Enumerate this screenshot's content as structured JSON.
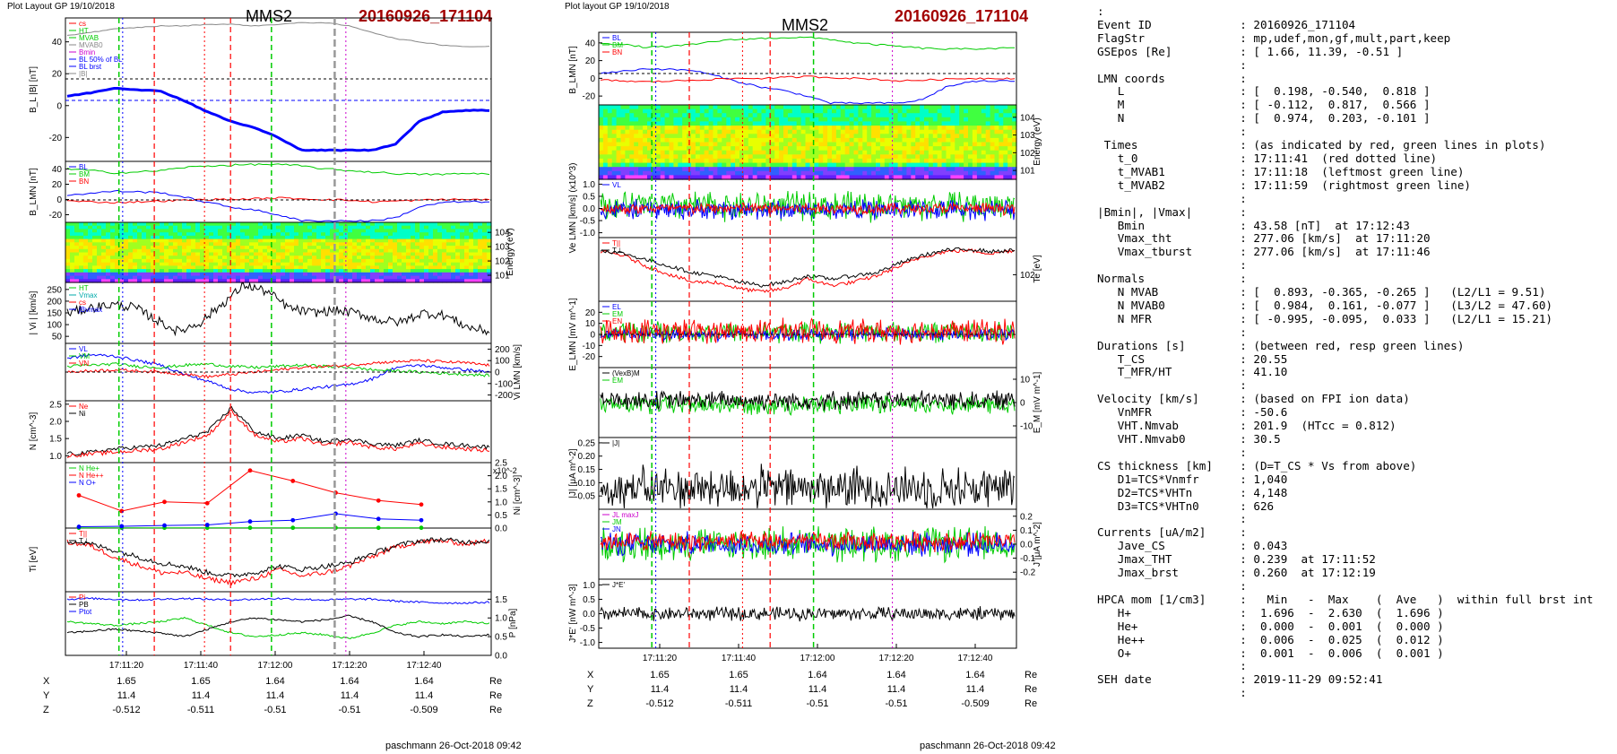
{
  "header": {
    "left_layout_label": "Plot Layout GP 19/10/2018",
    "right_layout_label": "Plot layout GP 19/10/2018",
    "spacecraft": "MMS2",
    "event_id": "20160926_171104",
    "footer": "paschmann 26-Oct-2018 09:42"
  },
  "positions": {
    "row_labels": [
      "X",
      "Y",
      "Z"
    ],
    "unit": "Re",
    "X": [
      "1.65",
      "1.65",
      "1.64",
      "1.64",
      "1.64"
    ],
    "Y": [
      "11.4",
      "11.4",
      "11.4",
      "11.4",
      "11.4"
    ],
    "Z": [
      "-0.512",
      "-0.511",
      "-0.51",
      "-0.51",
      "-0.509"
    ]
  },
  "time_ticks": [
    "17:11:20",
    "17:11:40",
    "17:12:00",
    "17:12:20",
    "17:12:40"
  ],
  "colors": {
    "red": "#ff0000",
    "green": "#00cc00",
    "blue": "#0000ff",
    "black": "#000000",
    "magenta": "#cc00cc",
    "dark_red": "#a30000"
  },
  "chart_data": [
    {
      "type": "line",
      "panel": "left-1",
      "ylabel": "B_L |B| [nT]",
      "yticks": [
        "40",
        "20",
        "0",
        "-20"
      ],
      "ylim": [
        -35,
        55
      ],
      "legend": [
        "cs",
        "HT",
        "MVAB",
        "MVAB0",
        "Bmin",
        "BL 50% of BL",
        "BL brst",
        "|B|"
      ],
      "series": [
        {
          "name": "|B|",
          "color": "#888888",
          "values": [
            44,
            46,
            48,
            49,
            50,
            50,
            51,
            51,
            50,
            51,
            52,
            52,
            50,
            46,
            42,
            40,
            38,
            37,
            37
          ]
        },
        {
          "name": "BL brst",
          "color": "#0000ff",
          "values": [
            6,
            8,
            11,
            10,
            9,
            3,
            -4,
            -10,
            -14,
            -20,
            -28,
            -28,
            -28,
            -28,
            -24,
            -10,
            -4,
            -3,
            -3
          ]
        }
      ]
    },
    {
      "type": "line",
      "panel": "left-2",
      "ylabel": "B_LMN [nT]",
      "yticks": [
        "40",
        "20",
        "0",
        "-20"
      ],
      "ylim": [
        -30,
        50
      ],
      "legend": [
        "BL",
        "BM",
        "BN"
      ],
      "series": [
        {
          "name": "BL",
          "color": "#0000ff",
          "values": [
            6,
            8,
            11,
            10,
            9,
            3,
            -4,
            -10,
            -14,
            -20,
            -28,
            -28,
            -28,
            -28,
            -24,
            -10,
            -4,
            -3,
            -3
          ]
        },
        {
          "name": "BM",
          "color": "#00cc00",
          "values": [
            40,
            38,
            35,
            36,
            38,
            42,
            44,
            45,
            46,
            46,
            44,
            40,
            38,
            36,
            34,
            33,
            33,
            34,
            34
          ]
        },
        {
          "name": "BN",
          "color": "#ff0000",
          "values": [
            -2,
            -3,
            -4,
            -3,
            -2,
            -1,
            0,
            0,
            1,
            2,
            1,
            0,
            -1,
            -3,
            -2,
            -1,
            0,
            0,
            0
          ]
        }
      ]
    },
    {
      "type": "heatmap",
      "panel": "left-3",
      "ylabel": "Energy (eV)",
      "yticks": [
        "10^4",
        "10^3",
        "10^2",
        "10^1"
      ]
    },
    {
      "type": "line",
      "panel": "left-4",
      "ylabel": "| Vi | [km/s]",
      "yticks": [
        "250",
        "200",
        "150",
        "100",
        "50"
      ],
      "ylim": [
        20,
        280
      ],
      "legend": [
        "HT",
        "Vmax",
        "cs",
        "jBvmax"
      ],
      "series": [
        {
          "name": "|Vi|",
          "color": "#000000",
          "values": [
            150,
            170,
            185,
            175,
            120,
            70,
            110,
            190,
            270,
            240,
            170,
            150,
            160,
            150,
            120,
            110,
            150,
            140,
            90,
            70
          ]
        }
      ]
    },
    {
      "type": "line",
      "panel": "left-5",
      "ylabel": "Vi LMN [km/s]",
      "yticks": [
        "200",
        "100",
        "0",
        "-100",
        "-200"
      ],
      "ylim": [
        -250,
        250
      ],
      "legend": [
        "VL",
        "VM",
        "VN"
      ],
      "series": [
        {
          "name": "VL",
          "color": "#0000ff",
          "values": [
            120,
            150,
            140,
            100,
            60,
            -20,
            -80,
            -150,
            -180,
            -170,
            -150,
            -130,
            -110,
            -60,
            40,
            60,
            40,
            20,
            0
          ]
        },
        {
          "name": "VM",
          "color": "#00cc00",
          "values": [
            50,
            60,
            70,
            50,
            40,
            60,
            70,
            50,
            40,
            50,
            60,
            50,
            40,
            20,
            10,
            0,
            -10,
            -20,
            -30
          ]
        },
        {
          "name": "VN",
          "color": "#ff0000",
          "values": [
            0,
            10,
            20,
            10,
            0,
            -20,
            -40,
            -20,
            0,
            20,
            40,
            50,
            60,
            80,
            90,
            100,
            90,
            80,
            60
          ]
        }
      ]
    },
    {
      "type": "line",
      "panel": "left-6",
      "ylabel": "N [cm^-3]",
      "yticks": [
        "2.5",
        "2.0",
        "1.5",
        "1.0"
      ],
      "ylim": [
        0.8,
        2.6
      ],
      "legend": [
        "Ne",
        "Ni"
      ],
      "series": [
        {
          "name": "Ni",
          "color": "#000000",
          "values": [
            1.05,
            1.1,
            1.2,
            1.25,
            1.3,
            1.5,
            1.7,
            2.4,
            1.7,
            1.5,
            1.6,
            1.4,
            1.5,
            1.35,
            1.3,
            1.45,
            1.35,
            1.3,
            1.25
          ]
        },
        {
          "name": "Ne",
          "color": "#ff0000",
          "values": [
            1.0,
            1.05,
            1.1,
            1.15,
            1.2,
            1.4,
            1.6,
            2.3,
            1.6,
            1.4,
            1.5,
            1.3,
            1.4,
            1.25,
            1.2,
            1.35,
            1.25,
            1.2,
            1.15
          ]
        }
      ]
    },
    {
      "type": "line",
      "panel": "left-7",
      "ylabel": "Ni [cm^-3]",
      "scale_note": "x10^-2",
      "yticks": [
        "2.5",
        "2.0",
        "1.5",
        "1.0",
        "0.5",
        "0.0"
      ],
      "ylim": [
        0,
        2.5
      ],
      "legend": [
        "N He+",
        "N He++",
        "N O+"
      ],
      "series": [
        {
          "name": "N He+",
          "color": "#00cc00",
          "values": [
            0.01,
            0.01,
            0.01,
            0.01,
            0.01,
            0.01,
            0.01,
            0.01,
            0.01
          ]
        },
        {
          "name": "N He++",
          "color": "#ff0000",
          "values": [
            1.25,
            0.65,
            1.0,
            0.95,
            2.2,
            1.8,
            1.35,
            1.05,
            0.9
          ]
        },
        {
          "name": "N O+",
          "color": "#0000ff",
          "values": [
            0.05,
            0.07,
            0.1,
            0.12,
            0.25,
            0.3,
            0.55,
            0.35,
            0.3
          ]
        }
      ]
    },
    {
      "type": "line",
      "panel": "left-8",
      "ylabel": "Ti [eV]",
      "legend": [
        "T||",
        "T⊥"
      ],
      "series": [
        {
          "name": "T||",
          "color": "#ff0000",
          "values": [
            0.78,
            0.72,
            0.55,
            0.42,
            0.3,
            0.3,
            0.2,
            0.15,
            0.2,
            0.35,
            0.25,
            0.3,
            0.4,
            0.55,
            0.7,
            0.78,
            0.8,
            0.75,
            0.8
          ]
        },
        {
          "name": "T⊥",
          "color": "#000000",
          "values": [
            0.8,
            0.75,
            0.65,
            0.55,
            0.45,
            0.4,
            0.3,
            0.25,
            0.3,
            0.4,
            0.35,
            0.4,
            0.45,
            0.6,
            0.72,
            0.8,
            0.82,
            0.78,
            0.8
          ]
        }
      ]
    },
    {
      "type": "line",
      "panel": "left-9",
      "ylabel": "P [nPa]",
      "yticks": [
        "1.5",
        "1.0",
        "0.5",
        "0.0"
      ],
      "ylim": [
        0,
        1.7
      ],
      "legend": [
        "Pi",
        "PB",
        "Ptot"
      ],
      "series": [
        {
          "name": "Ptot",
          "color": "#0000ff",
          "values": [
            1.5,
            1.52,
            1.5,
            1.48,
            1.5,
            1.52,
            1.5,
            1.48,
            1.5,
            1.52,
            1.5,
            1.48,
            1.5,
            1.5,
            1.45,
            1.42,
            1.4,
            1.4,
            1.42
          ]
        },
        {
          "name": "PB",
          "color": "#00cc00",
          "values": [
            0.9,
            0.85,
            0.8,
            0.85,
            0.9,
            1.0,
            0.8,
            0.6,
            0.5,
            0.55,
            0.6,
            0.55,
            0.45,
            0.6,
            0.8,
            0.9,
            0.85,
            0.9,
            0.85
          ]
        },
        {
          "name": "Pi",
          "color": "#000000",
          "values": [
            0.6,
            0.65,
            0.7,
            0.65,
            0.6,
            0.5,
            0.7,
            0.9,
            1.0,
            0.95,
            0.9,
            0.95,
            1.05,
            0.9,
            0.6,
            0.5,
            0.55,
            0.5,
            0.55
          ]
        }
      ]
    },
    {
      "type": "line",
      "panel": "right-1",
      "ylabel": "B_LMN [nT]",
      "yticks": [
        "40",
        "20",
        "0",
        "-20"
      ],
      "ylim": [
        -30,
        52
      ],
      "legend": [
        "BL",
        "BM",
        "BN"
      ],
      "series": [
        {
          "name": "BL",
          "color": "#0000ff",
          "values": [
            6,
            8,
            11,
            10,
            9,
            3,
            -4,
            -10,
            -14,
            -20,
            -28,
            -28,
            -28,
            -28,
            -24,
            -10,
            -4,
            -3,
            -3
          ]
        },
        {
          "name": "BM",
          "color": "#00cc00",
          "values": [
            40,
            38,
            35,
            36,
            38,
            42,
            44,
            45,
            46,
            46,
            44,
            40,
            38,
            36,
            34,
            33,
            33,
            34,
            34
          ]
        },
        {
          "name": "BN",
          "color": "#ff0000",
          "values": [
            -2,
            -3,
            -4,
            -3,
            -2,
            -1,
            0,
            0,
            1,
            2,
            1,
            0,
            -1,
            -3,
            -2,
            -1,
            0,
            0,
            0
          ]
        }
      ]
    },
    {
      "type": "heatmap",
      "panel": "right-2",
      "ylabel": "Energy (eV)",
      "yticks": [
        "10^4",
        "10^3",
        "10^2",
        "10^1"
      ]
    },
    {
      "type": "line",
      "panel": "right-3",
      "ylabel": "Ve LMN [km/s] (x10^3)",
      "yticks": [
        "1.0",
        "0.5",
        "0.0",
        "-0.5",
        "-1.0"
      ],
      "ylim": [
        -1.2,
        1.2
      ],
      "legend": [
        "VL"
      ]
    },
    {
      "type": "line",
      "panel": "right-4",
      "ylabel": "Te [eV]",
      "yticks": [
        "10^2"
      ],
      "legend": [
        "T||",
        "T⊥"
      ],
      "series": [
        {
          "name": "T||",
          "color": "#ff0000",
          "values": [
            0.78,
            0.72,
            0.55,
            0.42,
            0.3,
            0.3,
            0.2,
            0.15,
            0.2,
            0.35,
            0.25,
            0.3,
            0.4,
            0.55,
            0.7,
            0.78,
            0.8,
            0.75,
            0.8
          ]
        },
        {
          "name": "T⊥",
          "color": "#000000",
          "values": [
            0.8,
            0.75,
            0.65,
            0.55,
            0.45,
            0.4,
            0.3,
            0.25,
            0.3,
            0.4,
            0.35,
            0.4,
            0.45,
            0.6,
            0.72,
            0.8,
            0.82,
            0.78,
            0.8
          ]
        }
      ]
    },
    {
      "type": "line",
      "panel": "right-5",
      "ylabel": "E_LMN [mV m^-1]",
      "yticks": [
        "20",
        "10",
        "0",
        "-10",
        "-20"
      ],
      "ylim": [
        -30,
        30
      ],
      "legend": [
        "EL",
        "EM",
        "EN"
      ]
    },
    {
      "type": "line",
      "panel": "right-6",
      "ylabel": "E_M [mV m^-1]",
      "yticks": [
        "10",
        "0",
        "-10"
      ],
      "ylim": [
        -15,
        15
      ],
      "legend": [
        "(VexB)M",
        "EM"
      ]
    },
    {
      "type": "line",
      "panel": "right-7",
      "ylabel": "|J| [μA m^-2]",
      "yticks": [
        "0.25",
        "0.20",
        "0.15",
        "0.10",
        "0.05"
      ],
      "ylim": [
        0,
        0.27
      ],
      "legend": [
        "|J|"
      ]
    },
    {
      "type": "line",
      "panel": "right-8",
      "ylabel": "J [μA m^-2]",
      "yticks": [
        "0.2",
        "0.1",
        "0.0",
        "-0.1",
        "-0.2"
      ],
      "ylim": [
        -0.25,
        0.25
      ],
      "legend": [
        "JL maxJ",
        "JM",
        "JN"
      ]
    },
    {
      "type": "line",
      "panel": "right-9",
      "ylabel": "J*E' [nW m^-3]",
      "yticks": [
        "1.0",
        "0.5",
        "0.0",
        "-0.5",
        "-1.0"
      ],
      "ylim": [
        -1.2,
        1.2
      ],
      "legend": [
        "J*E'"
      ]
    }
  ],
  "info_lines": [
    ":",
    "Event ID             : 20160926_171104",
    "FlagStr              : mp,udef,mon,gf,mult,part,keep",
    "GSEpos [Re]          : [ 1.66, 11.39, -0.51 ]",
    "                     :",
    "LMN coords           :",
    "   L                 : [  0.198, -0.540,  0.818 ]",
    "   M                 : [ -0.112,  0.817,  0.566 ]",
    "   N                 : [  0.974,  0.203, -0.101 ]",
    "                     :",
    " Times               : (as indicated by red, green lines in plots)",
    "   t_0               : 17:11:41  (red dotted line)",
    "   t_MVAB1           : 17:11:18  (leftmost green line)",
    "   t_MVAB2           : 17:11:59  (rightmost green line)",
    "                     :",
    "|Bmin|, |Vmax|       :",
    "   Bmin              : 43.58 [nT]  at 17:12:43",
    "   Vmax_tht          : 277.06 [km/s]  at 17:11:20",
    "   Vmax_tburst       : 277.06 [km/s]  at 17:11:46",
    "                     :",
    "Normals              :",
    "   N MVAB            : [  0.893, -0.365, -0.265 ]   (L2/L1 = 9.51)",
    "   N MVAB0           : [  0.984,  0.161, -0.077 ]   (L3/L2 = 47.60)",
    "   N MFR             : [ -0.995, -0.095,  0.033 ]   (L2/L1 = 15.21)",
    "                     :",
    "Durations [s]        : (between red, resp green lines)",
    "   T_CS              : 20.55",
    "   T_MFR/HT          : 41.10",
    "                     :",
    "Velocity [km/s]      : (based on FPI ion data)",
    "   VnMFR             : -50.6",
    "   VHT.Nmvab         : 201.9  (HTcc = 0.812)",
    "   VHT.Nmvab0        : 30.5",
    "                     :",
    "CS thickness [km]    : (D=T_CS * Vs from above)",
    "   D1=TCS*Vnmfr      : 1,040",
    "   D2=TCS*VHTn       : 4,148",
    "   D3=TCS*VHTn0      : 626",
    "                     :",
    "Currents [uA/m2]     :",
    "   Jave_CS           : 0.043",
    "   Jmax_THT          : 0.239  at 17:11:52",
    "   Jmax_brst         : 0.260  at 17:12:19",
    "                     :",
    "HPCA mom [1/cm3]     :   Min   -  Max    (  Ave   )  within full brst int",
    "   H+                :  1.696  -  2.630  (  1.696 )",
    "   He+               :  0.000  -  0.001  (  0.000 )",
    "   He++              :  0.006  -  0.025  (  0.012 )",
    "   O+                :  0.001  -  0.006  (  0.001 )",
    "                     :",
    "SEH date             : 2019-11-29 09:52:41",
    "                     :"
  ]
}
